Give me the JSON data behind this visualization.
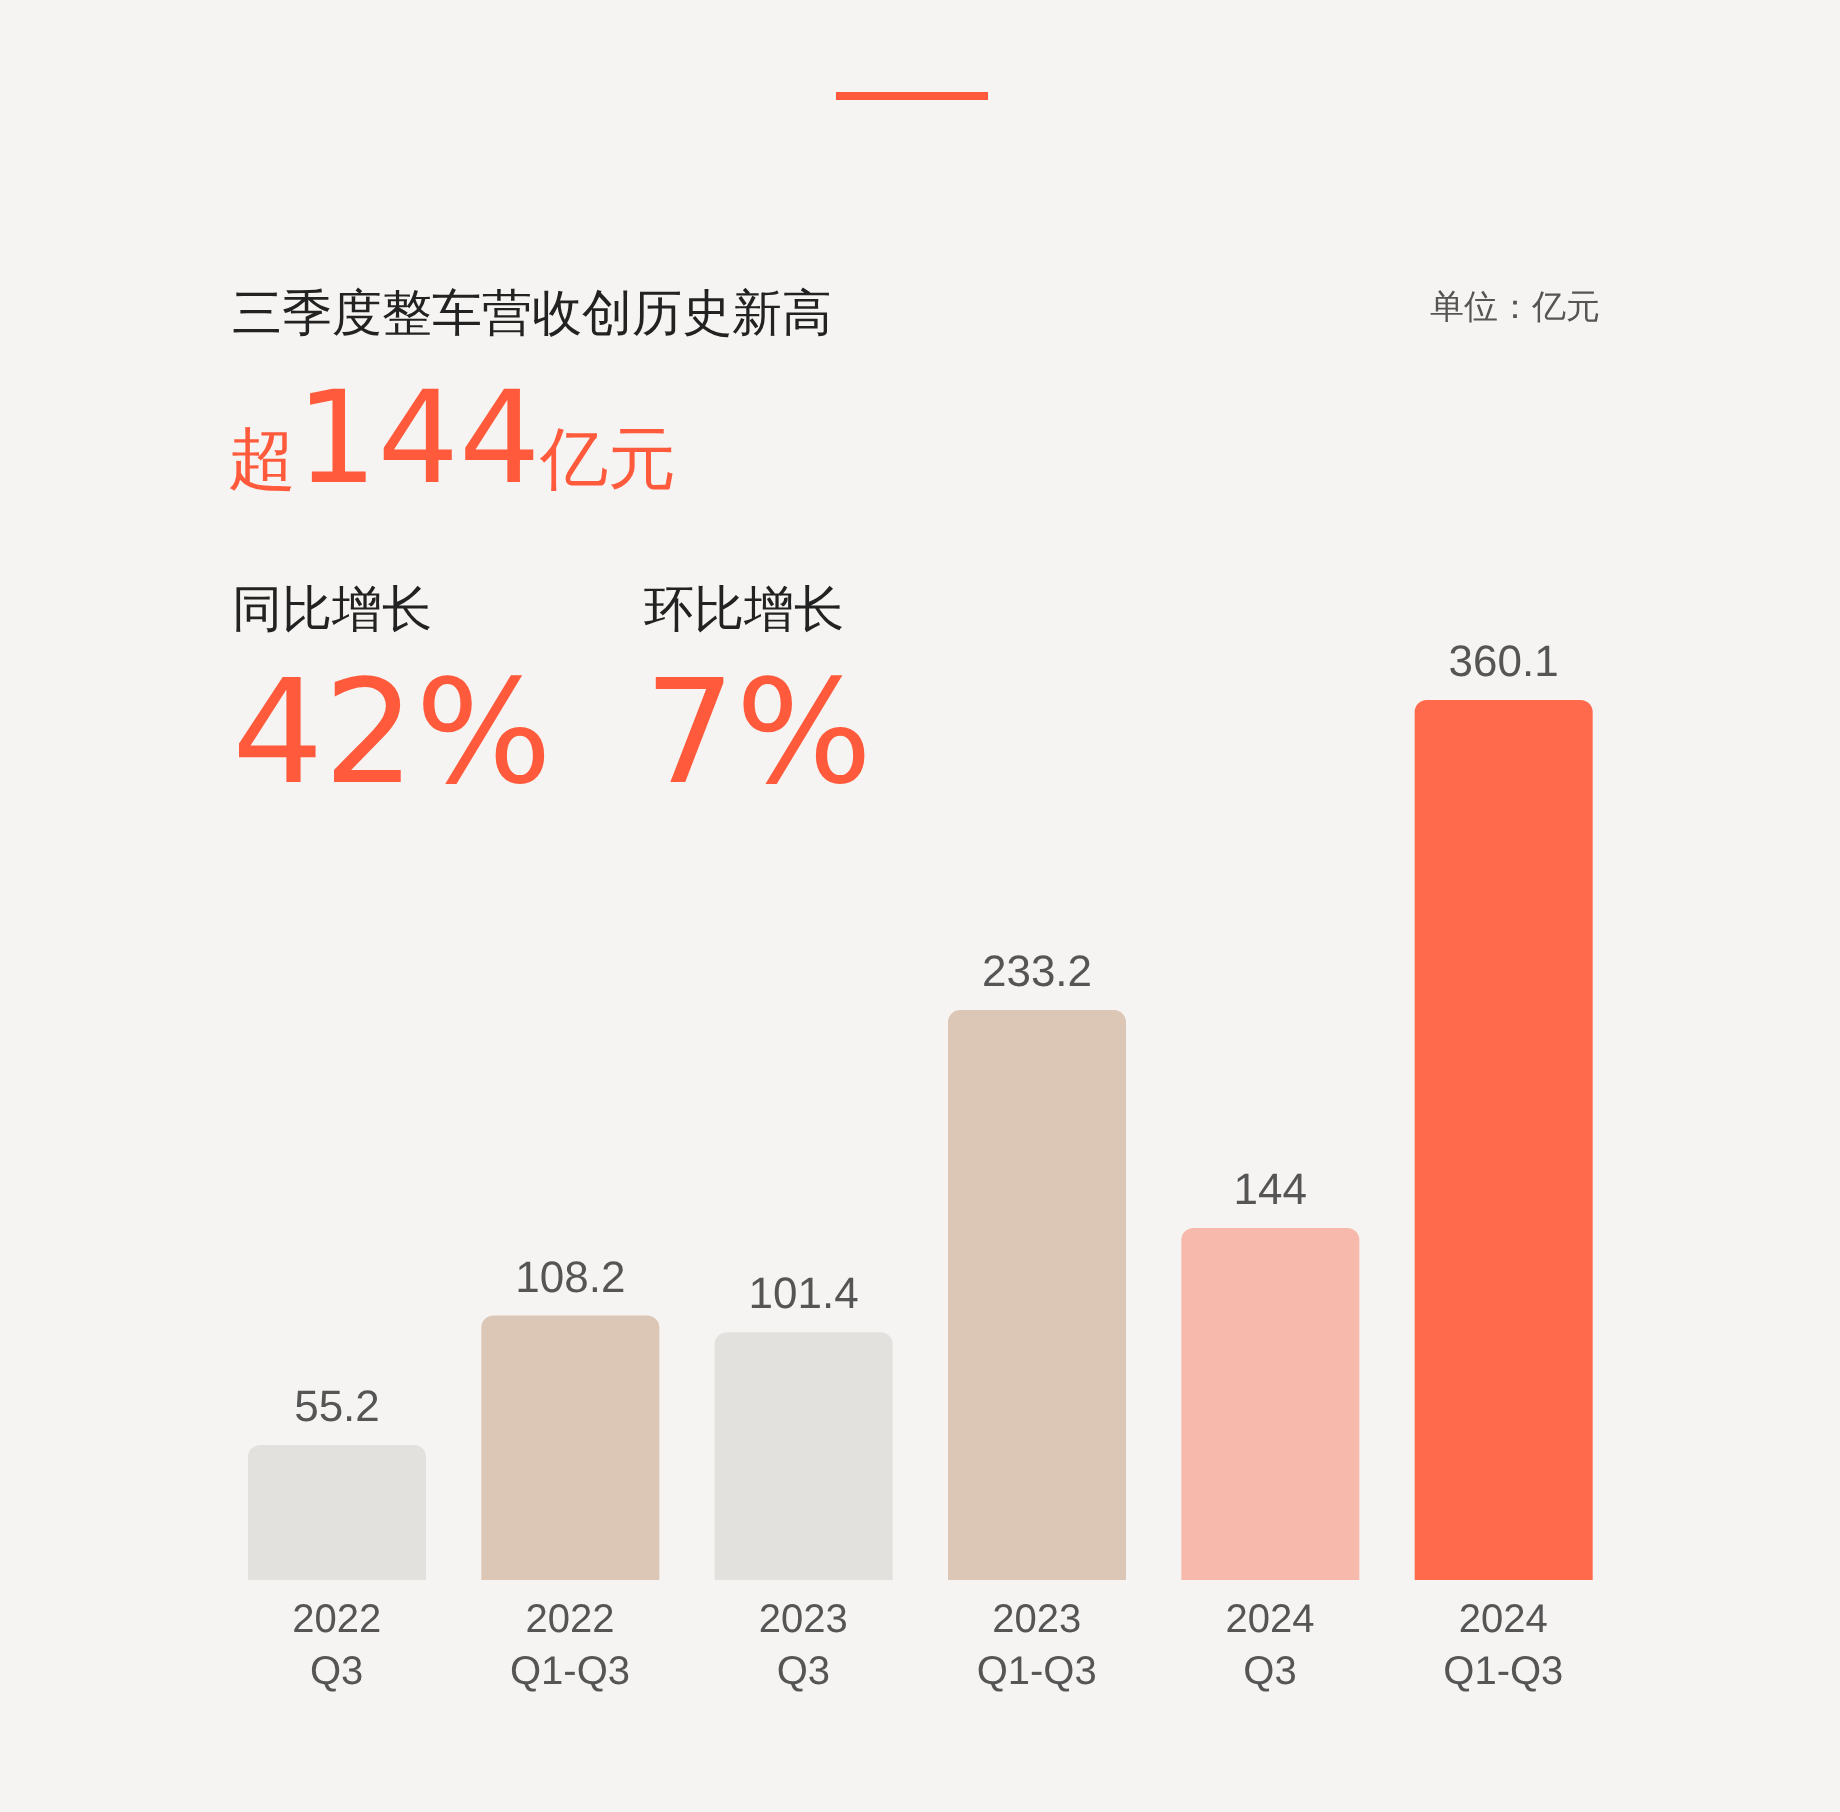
{
  "chart_data": {
    "type": "bar",
    "title": "三季度整车营收创历史新高",
    "subtitle": "超144亿元",
    "annotations": [
      "单位：亿元",
      "同比增长",
      "42%",
      "环比增长",
      "7%"
    ],
    "categories": [
      "2022\nQ3",
      "2022\nQ1-Q3",
      "2023\nQ3",
      "2023\nQ1-Q3",
      "2024\nQ3",
      "2024\nQ1-Q3"
    ],
    "values": [
      55.2,
      108.2,
      101.4,
      233.2,
      144,
      360.1
    ],
    "colors": [
      "#e3e1de",
      "#dcc6b6",
      "#e3e1de",
      "#dcc6b6",
      "#f6b9ab",
      "#ff6a4d"
    ],
    "data_labels": true
  }
}
